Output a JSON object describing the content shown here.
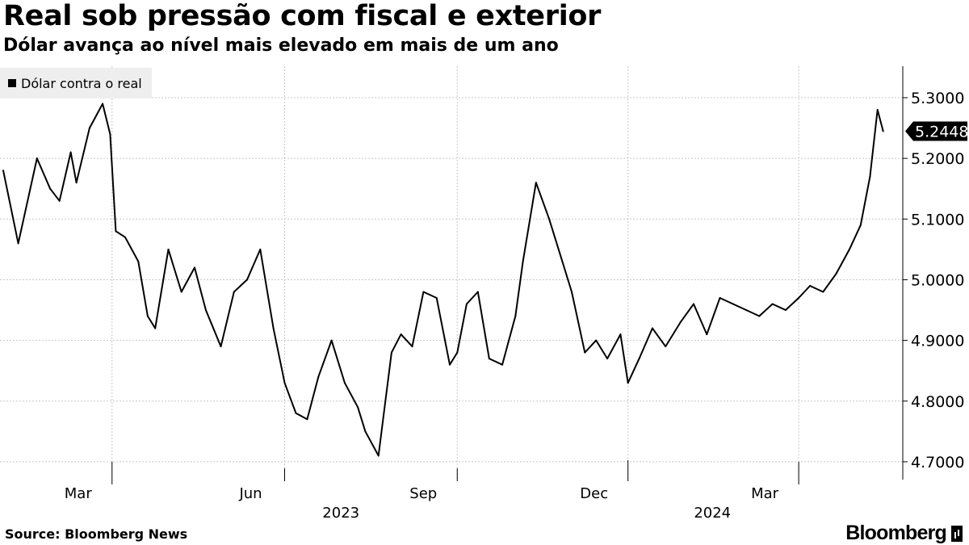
{
  "header": {
    "title": "Real sob pressão com fiscal e exterior",
    "subtitle": "Dólar avança ao nível mais elevado em mais de um ano"
  },
  "footer": {
    "source": "Source: Bloomberg News",
    "brand": "Bloomberg"
  },
  "chart_data": {
    "type": "line",
    "title": "Real sob pressão com fiscal e exterior",
    "subtitle": "Dólar avança ao nível mais elevado em mais de um ano",
    "xlabel": "",
    "ylabel": "",
    "ylim": [
      4.68,
      5.34
    ],
    "y_ticks": [
      "4.7000",
      "4.8000",
      "4.9000",
      "5.0000",
      "5.1000",
      "5.2000",
      "5.3000"
    ],
    "y_tick_values": [
      4.7,
      4.8,
      4.9,
      5.0,
      5.1,
      5.2,
      5.3
    ],
    "x_ticks": [
      "Mar",
      "Jun",
      "Sep",
      "Dec",
      "Mar"
    ],
    "x_tick_dates": [
      "2023-03-01",
      "2023-06-01",
      "2023-09-01",
      "2023-12-01",
      "2024-03-01"
    ],
    "year_labels": [
      "2023",
      "2024"
    ],
    "year_label_dates": [
      "2023-07-01",
      "2024-01-15"
    ],
    "xlim": [
      "2023-01-02",
      "2024-04-16"
    ],
    "grid": true,
    "legend": "top-left",
    "last_value_label": "5.2448",
    "line_color": "#000000",
    "series": [
      {
        "name": "Dólar contra o real",
        "x": [
          "2023-01-02",
          "2023-01-10",
          "2023-01-20",
          "2023-01-27",
          "2023-02-01",
          "2023-02-07",
          "2023-02-10",
          "2023-02-17",
          "2023-02-24",
          "2023-02-28",
          "2023-03-03",
          "2023-03-08",
          "2023-03-15",
          "2023-03-20",
          "2023-03-24",
          "2023-03-31",
          "2023-04-07",
          "2023-04-14",
          "2023-04-20",
          "2023-04-28",
          "2023-05-05",
          "2023-05-12",
          "2023-05-19",
          "2023-05-26",
          "2023-06-01",
          "2023-06-07",
          "2023-06-13",
          "2023-06-19",
          "2023-06-26",
          "2023-07-03",
          "2023-07-10",
          "2023-07-14",
          "2023-07-21",
          "2023-07-28",
          "2023-08-02",
          "2023-08-08",
          "2023-08-14",
          "2023-08-21",
          "2023-08-28",
          "2023-09-01",
          "2023-09-06",
          "2023-09-12",
          "2023-09-18",
          "2023-09-25",
          "2023-10-02",
          "2023-10-06",
          "2023-10-13",
          "2023-10-20",
          "2023-10-26",
          "2023-11-01",
          "2023-11-08",
          "2023-11-14",
          "2023-11-20",
          "2023-11-27",
          "2023-12-01",
          "2023-12-07",
          "2023-12-14",
          "2023-12-21",
          "2023-12-29",
          "2024-01-05",
          "2024-01-12",
          "2024-01-19",
          "2024-01-26",
          "2024-02-02",
          "2024-02-09",
          "2024-02-16",
          "2024-02-23",
          "2024-03-01",
          "2024-03-07",
          "2024-03-14",
          "2024-03-21",
          "2024-03-28",
          "2024-04-03",
          "2024-04-08",
          "2024-04-12",
          "2024-04-15"
        ],
        "values": [
          5.18,
          5.06,
          5.2,
          5.15,
          5.13,
          5.21,
          5.16,
          5.25,
          5.29,
          5.24,
          5.08,
          5.07,
          5.03,
          4.94,
          4.92,
          5.05,
          4.98,
          5.02,
          4.95,
          4.89,
          4.98,
          5.0,
          5.05,
          4.92,
          4.83,
          4.78,
          4.77,
          4.84,
          4.9,
          4.83,
          4.79,
          4.75,
          4.71,
          4.88,
          4.91,
          4.89,
          4.98,
          4.97,
          4.86,
          4.88,
          4.96,
          4.98,
          4.87,
          4.86,
          4.94,
          5.03,
          5.16,
          5.1,
          5.04,
          4.98,
          4.88,
          4.9,
          4.87,
          4.91,
          4.83,
          4.87,
          4.92,
          4.89,
          4.93,
          4.96,
          4.91,
          4.97,
          4.96,
          4.95,
          4.94,
          4.96,
          4.95,
          4.97,
          4.99,
          4.98,
          5.01,
          5.05,
          5.09,
          5.17,
          5.28,
          5.2448
        ]
      }
    ]
  }
}
